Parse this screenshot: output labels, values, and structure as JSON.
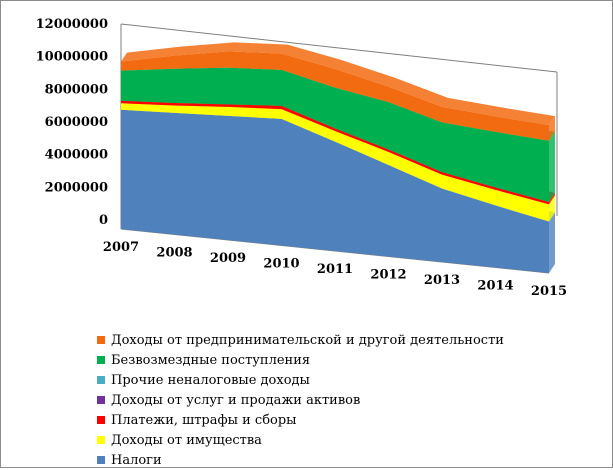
{
  "chart_data": {
    "type": "area",
    "title": "",
    "xlabel": "",
    "ylabel": "",
    "x": [
      "2007",
      "2008",
      "2009",
      "2010",
      "2011",
      "2012",
      "2013",
      "2014",
      "2015"
    ],
    "y_ticks": [
      "0",
      "2000000",
      "4000000",
      "6000000",
      "8000000",
      "10000000",
      "12000000"
    ],
    "ylim": [
      0,
      12000000
    ],
    "stacked": true,
    "series": [
      {
        "name": "Налоги",
        "color": "#4f81bd",
        "values": [
          7300000,
          7450000,
          7600000,
          7750000,
          6700000,
          5600000,
          4500000,
          3800000,
          3150000
        ]
      },
      {
        "name": "Доходы от имущества",
        "color": "#ffff00",
        "values": [
          400000,
          450000,
          550000,
          600000,
          650000,
          800000,
          850000,
          950000,
          1050000
        ]
      },
      {
        "name": "Платежи, штрафы и сборы",
        "color": "#ff0000",
        "values": [
          150000,
          150000,
          150000,
          200000,
          150000,
          150000,
          150000,
          150000,
          150000
        ]
      },
      {
        "name": "Доходы от услуг и продажи активов",
        "color": "#7030a0",
        "values": [
          0,
          0,
          0,
          0,
          0,
          0,
          0,
          0,
          0
        ]
      },
      {
        "name": "Прочие неналоговые доходы",
        "color": "#4bacc6",
        "values": [
          0,
          0,
          0,
          0,
          0,
          0,
          0,
          0,
          0
        ]
      },
      {
        "name": "Безвозмездные поступления",
        "color": "#00b050",
        "values": [
          1850000,
          2100000,
          2250000,
          2200000,
          2500000,
          2900000,
          3050000,
          3400000,
          3750000
        ]
      },
      {
        "name": "Доходы от предпринимательской и другой деятельности",
        "color": "#f26b10",
        "values": [
          550000,
          800000,
          1000000,
          1000000,
          1150000,
          950000,
          950000,
          950000,
          950000
        ]
      }
    ],
    "legend_position": "bottom",
    "legend_order": [
      "Доходы от предпринимательской и другой деятельности",
      "Безвозмездные поступления",
      "Прочие неналоговые доходы",
      "Доходы от услуг и продажи активов",
      "Платежи, штрафы и сборы",
      "Доходы от имущества",
      "Налоги"
    ]
  }
}
